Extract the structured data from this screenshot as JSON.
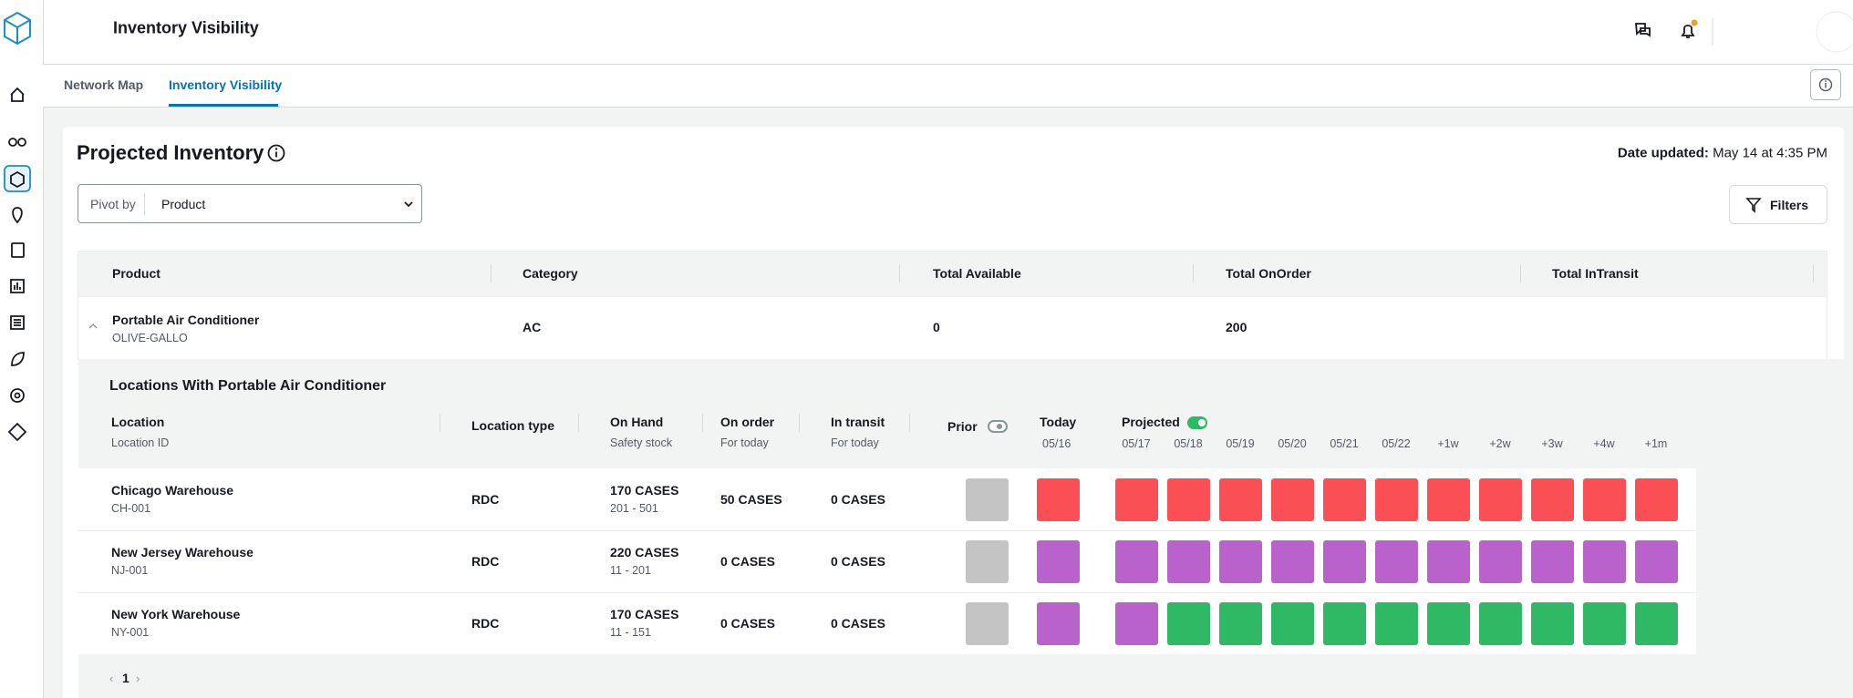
{
  "header": {
    "title": "Inventory Visibility"
  },
  "tabs": {
    "items": [
      "Network Map",
      "Inventory Visibility"
    ],
    "active": 1
  },
  "panel": {
    "title": "Projected Inventory",
    "date_label": "Date updated:",
    "date_value": "May 14 at 4:35 PM",
    "pivot_label": "Pivot by",
    "pivot_value": "Product",
    "filters": "Filters"
  },
  "table": {
    "columns": [
      "Product",
      "Category",
      "Total Available",
      "Total OnOrder",
      "Total InTransit"
    ],
    "rows": [
      {
        "product": "Portable Air Conditioner",
        "product_id": "OLIVE-GALLO",
        "category": "AC",
        "total_available": "0",
        "total_onorder": "200"
      }
    ]
  },
  "locations": {
    "title": "Locations With Portable Air Conditioner",
    "columns": [
      {
        "label": "Location",
        "sub": "Location ID"
      },
      {
        "label": "Location type"
      },
      {
        "label": "On Hand",
        "sub": "Safety stock"
      },
      {
        "label": "On order",
        "sub": "For today"
      },
      {
        "label": "In transit",
        "sub": "For today"
      }
    ],
    "prior": "Prior",
    "today": {
      "label": "Today",
      "date": "05/16"
    },
    "projected": {
      "label": "Projected",
      "dates": [
        "05/17",
        "05/18",
        "05/19",
        "05/20",
        "05/21",
        "05/22",
        "+1w",
        "+2w",
        "+3w",
        "+4w",
        "+1m"
      ]
    },
    "rows": [
      {
        "name": "Chicago Warehouse",
        "id": "CH-001",
        "type": "RDC",
        "on_hand": "170 CASES",
        "safety_stock": "201 - 501",
        "on_order": "50 CASES",
        "in_transit": "0 CASES",
        "prior_color": "#c4c4c4",
        "today_color": "#f94f55",
        "projected_colors": [
          "#f94f55",
          "#f94f55",
          "#f94f55",
          "#f94f55",
          "#f94f55",
          "#f94f55",
          "#f94f55",
          "#f94f55",
          "#f94f55",
          "#f94f55",
          "#f94f55"
        ]
      },
      {
        "name": "New Jersey Warehouse",
        "id": "NJ-001",
        "type": "RDC",
        "on_hand": "220 CASES",
        "safety_stock": "11 - 201",
        "on_order": "0 CASES",
        "in_transit": "0 CASES",
        "prior_color": "#c4c4c4",
        "today_color": "#b962cc",
        "projected_colors": [
          "#b962cc",
          "#b962cc",
          "#b962cc",
          "#b962cc",
          "#b962cc",
          "#b962cc",
          "#b962cc",
          "#b962cc",
          "#b962cc",
          "#b962cc",
          "#b962cc"
        ]
      },
      {
        "name": "New York Warehouse",
        "id": "NY-001",
        "type": "RDC",
        "on_hand": "170 CASES",
        "safety_stock": "11 - 151",
        "on_order": "0 CASES",
        "in_transit": "0 CASES",
        "prior_color": "#c4c4c4",
        "today_color": "#b962cc",
        "projected_colors": [
          "#b962cc",
          "#2fb964",
          "#2fb964",
          "#2fb964",
          "#2fb964",
          "#2fb964",
          "#2fb964",
          "#2fb964",
          "#2fb964",
          "#2fb964",
          "#2fb964"
        ]
      }
    ]
  },
  "pagination": {
    "page": "1"
  }
}
